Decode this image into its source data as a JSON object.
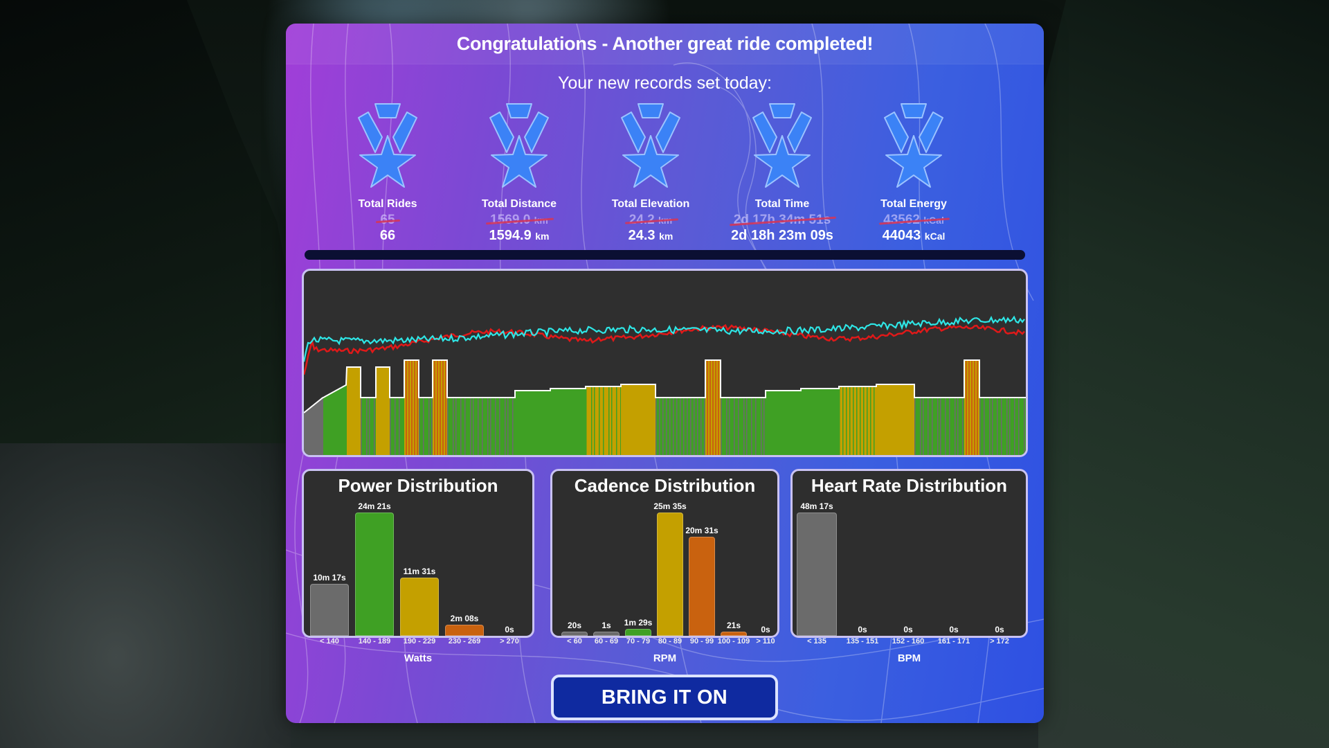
{
  "header": {
    "title": "Congratulations - Another great ride completed!"
  },
  "records": {
    "title": "Your new records set today:",
    "items": [
      {
        "label": "Total Rides",
        "old": "65",
        "old_unit": "",
        "new": "66",
        "new_unit": ""
      },
      {
        "label": "Total Distance",
        "old": "1569.0",
        "old_unit": "km",
        "new": "1594.9",
        "new_unit": "km"
      },
      {
        "label": "Total Elevation",
        "old": "24.2",
        "old_unit": "km",
        "new": "24.3",
        "new_unit": "km"
      },
      {
        "label": "Total Time",
        "old": "2d 17h 34m 51s",
        "old_unit": "",
        "new": "2d 18h 23m 09s",
        "new_unit": ""
      },
      {
        "label": "Total Energy",
        "old": "43562",
        "old_unit": "kCal",
        "new": "44043",
        "new_unit": "kCal"
      }
    ]
  },
  "timeline": {
    "series_colors": {
      "heart_rate": "#2ee6e6",
      "cadence": "#e01919",
      "power_outline": "#ffffff"
    },
    "zone_colors": {
      "z1": "#6b6b6b",
      "z2": "#3fa024",
      "z3": "#c4a000",
      "z4": "#c9620f"
    }
  },
  "chart_data": [
    {
      "type": "bar",
      "title": "Power Distribution",
      "xlabel": "Watts",
      "categories": [
        "< 140",
        "140 - 189",
        "190 - 229",
        "230 - 269",
        "> 270"
      ],
      "labels": [
        "10m 17s",
        "24m 21s",
        "11m 31s",
        "2m 08s",
        "0s"
      ],
      "values_seconds": [
        617,
        1461,
        691,
        128,
        0
      ],
      "colors": [
        "#6b6b6b",
        "#3fa024",
        "#c4a000",
        "#c9620f",
        "#c9620f"
      ]
    },
    {
      "type": "bar",
      "title": "Cadence Distribution",
      "xlabel": "RPM",
      "categories": [
        "< 60",
        "60 - 69",
        "70 - 79",
        "80 - 89",
        "90 - 99",
        "100 - 109",
        "> 110"
      ],
      "labels": [
        "20s",
        "1s",
        "1m 29s",
        "25m 35s",
        "20m 31s",
        "21s",
        "0s"
      ],
      "values_seconds": [
        20,
        1,
        89,
        1535,
        1231,
        21,
        0
      ],
      "colors": [
        "#6b6b6b",
        "#6b6b6b",
        "#3fa024",
        "#c4a000",
        "#c9620f",
        "#c9620f",
        "#c9620f"
      ]
    },
    {
      "type": "bar",
      "title": "Heart Rate Distribution",
      "xlabel": "BPM",
      "categories": [
        "< 135",
        "135 - 151",
        "152 - 160",
        "161 - 171",
        "> 172"
      ],
      "labels": [
        "48m 17s",
        "0s",
        "0s",
        "0s",
        "0s"
      ],
      "values_seconds": [
        2897,
        0,
        0,
        0,
        0
      ],
      "colors": [
        "#6b6b6b",
        "#3fa024",
        "#c4a000",
        "#c9620f",
        "#c9620f"
      ]
    }
  ],
  "power": {
    "title": "Power Distribution",
    "unit": "Watts",
    "bars": [
      {
        "label": "10m 17s",
        "cat": "< 140"
      },
      {
        "label": "24m 21s",
        "cat": "140 - 189"
      },
      {
        "label": "11m 31s",
        "cat": "190 - 229"
      },
      {
        "label": "2m 08s",
        "cat": "230 - 269"
      },
      {
        "label": "0s",
        "cat": "> 270"
      }
    ]
  },
  "cadence": {
    "title": "Cadence Distribution",
    "unit": "RPM",
    "bars": [
      {
        "label": "20s",
        "cat": "< 60"
      },
      {
        "label": "1s",
        "cat": "60 - 69"
      },
      {
        "label": "1m 29s",
        "cat": "70 - 79"
      },
      {
        "label": "25m 35s",
        "cat": "80 - 89"
      },
      {
        "label": "20m 31s",
        "cat": "90 - 99"
      },
      {
        "label": "21s",
        "cat": "100 - 109"
      },
      {
        "label": "0s",
        "cat": "> 110"
      }
    ]
  },
  "heartrate": {
    "title": "Heart Rate Distribution",
    "unit": "BPM",
    "bars": [
      {
        "label": "48m 17s",
        "cat": "< 135"
      },
      {
        "label": "0s",
        "cat": "135 - 151"
      },
      {
        "label": "0s",
        "cat": "152 - 160"
      },
      {
        "label": "0s",
        "cat": "161 - 171"
      },
      {
        "label": "0s",
        "cat": "> 172"
      }
    ]
  },
  "cta": {
    "label": "BRING IT ON"
  }
}
